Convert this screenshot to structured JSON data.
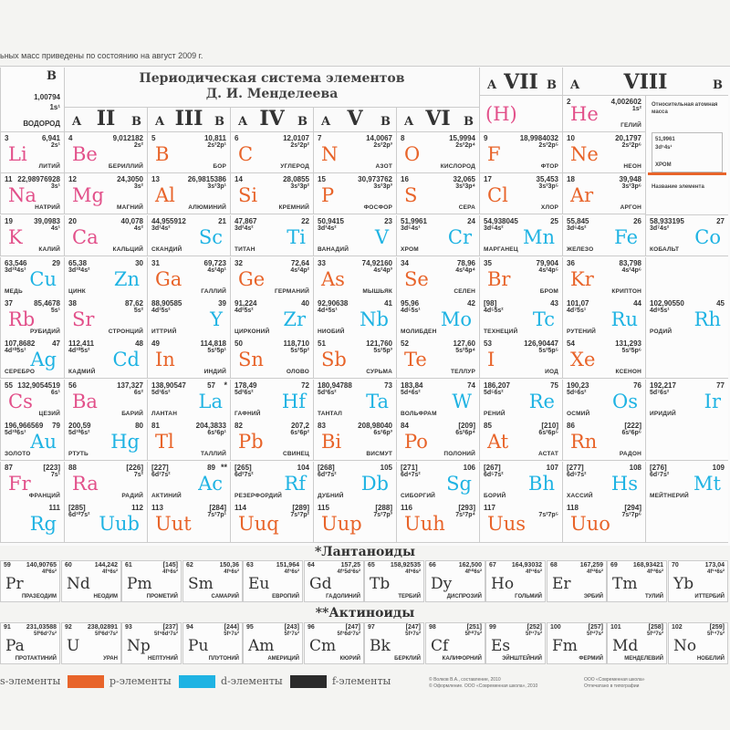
{
  "note": "ьных масс приведены по состоянию на август 2009 г.",
  "title": {
    "line1": "Периодическая система элементов",
    "line2": "Д. И. Менделеева"
  },
  "colors": {
    "s": "#e2508a",
    "p": "#e8642a",
    "d": "#1fb3e3",
    "f": "#2b2b2b"
  },
  "groups": [
    {
      "roman": "",
      "a": "",
      "b": "B"
    },
    {
      "roman": "II",
      "a": "A",
      "b": "B"
    },
    {
      "roman": "III",
      "a": "A",
      "b": "B"
    },
    {
      "roman": "IV",
      "a": "A",
      "b": "B"
    },
    {
      "roman": "V",
      "a": "A",
      "b": "B"
    },
    {
      "roman": "VI",
      "a": "A",
      "b": "B"
    },
    {
      "roman": "VII",
      "a": "A",
      "b": "B"
    },
    {
      "roman": "VIII",
      "a": "A",
      "b": "B"
    }
  ],
  "hydrogen_partial": {
    "mass": "1,00794",
    "cfg": "1s¹",
    "name": "ВОДОРОД"
  },
  "hydrogen_vii": "(H)",
  "helium": {
    "n": "2",
    "mass": "4,002602",
    "cfg": "1s²",
    "sym": "He",
    "name": "ГЕЛИЙ",
    "t": "s"
  },
  "legend_box": {
    "mass_label": "Относительная атомная масса",
    "mass": "51,9961",
    "cfg": "3d⁵4s¹",
    "name": "ХРОМ",
    "name_label": "Название элемента"
  },
  "rows": [
    [
      {
        "n": "3",
        "m": "6,941",
        "c": "2s¹",
        "s": "Li",
        "nm": "ЛИТИЙ",
        "t": "s",
        "side": "L"
      },
      {
        "n": "4",
        "m": "9,012182",
        "c": "2s²",
        "s": "Be",
        "nm": "БЕРИЛЛИЙ",
        "t": "s",
        "side": "L"
      },
      {
        "n": "5",
        "m": "10,811",
        "c": "2s²2p¹",
        "s": "B",
        "nm": "БОР",
        "t": "p",
        "side": "L"
      },
      {
        "n": "6",
        "m": "12,0107",
        "c": "2s²2p²",
        "s": "C",
        "nm": "УГЛЕРОД",
        "t": "p",
        "side": "L"
      },
      {
        "n": "7",
        "m": "14,0067",
        "c": "2s²2p³",
        "s": "N",
        "nm": "АЗОТ",
        "t": "p",
        "side": "L"
      },
      {
        "n": "8",
        "m": "15,9994",
        "c": "2s²2p⁴",
        "s": "O",
        "nm": "КИСЛОРОД",
        "t": "p",
        "side": "L"
      },
      {
        "n": "9",
        "m": "18,9984032",
        "c": "2s²2p⁵",
        "s": "F",
        "nm": "ФТОР",
        "t": "p",
        "side": "L"
      },
      {
        "n": "10",
        "m": "20,1797",
        "c": "2s²2p⁶",
        "s": "Ne",
        "nm": "НЕОН",
        "t": "p",
        "side": "L"
      },
      null
    ],
    [
      {
        "n": "11",
        "m": "22,98976928",
        "c": "3s¹",
        "s": "Na",
        "nm": "НАТРИЙ",
        "t": "s",
        "side": "L"
      },
      {
        "n": "12",
        "m": "24,3050",
        "c": "3s²",
        "s": "Mg",
        "nm": "МАГНИЙ",
        "t": "s",
        "side": "L"
      },
      {
        "n": "13",
        "m": "26,9815386",
        "c": "3s²3p¹",
        "s": "Al",
        "nm": "АЛЮМИНИЙ",
        "t": "p",
        "side": "L"
      },
      {
        "n": "14",
        "m": "28,0855",
        "c": "3s²3p²",
        "s": "Si",
        "nm": "КРЕМНИЙ",
        "t": "p",
        "side": "L"
      },
      {
        "n": "15",
        "m": "30,973762",
        "c": "3s²3p³",
        "s": "P",
        "nm": "ФОСФОР",
        "t": "p",
        "side": "L"
      },
      {
        "n": "16",
        "m": "32,065",
        "c": "3s²3p⁴",
        "s": "S",
        "nm": "СЕРА",
        "t": "p",
        "side": "L"
      },
      {
        "n": "17",
        "m": "35,453",
        "c": "3s²3p⁵",
        "s": "Cl",
        "nm": "ХЛОР",
        "t": "p",
        "side": "L"
      },
      {
        "n": "18",
        "m": "39,948",
        "c": "3s²3p⁶",
        "s": "Ar",
        "nm": "АРГОН",
        "t": "p",
        "side": "L"
      },
      null
    ],
    [
      {
        "n": "19",
        "m": "39,0983",
        "c": "4s¹",
        "s": "K",
        "nm": "КАЛИЙ",
        "t": "s",
        "side": "L"
      },
      {
        "n": "20",
        "m": "40,078",
        "c": "4s²",
        "s": "Ca",
        "nm": "КАЛЬЦИЙ",
        "t": "s",
        "side": "L"
      },
      {
        "n": "21",
        "m": "44,955912",
        "c": "3d¹4s²",
        "s": "Sc",
        "nm": "СКАНДИЙ",
        "t": "d",
        "side": "R"
      },
      {
        "n": "22",
        "m": "47,867",
        "c": "3d²4s²",
        "s": "Ti",
        "nm": "ТИТАН",
        "t": "d",
        "side": "R"
      },
      {
        "n": "23",
        "m": "50,9415",
        "c": "3d³4s²",
        "s": "V",
        "nm": "ВАНАДИЙ",
        "t": "d",
        "side": "R"
      },
      {
        "n": "24",
        "m": "51,9961",
        "c": "3d⁵4s¹",
        "s": "Cr",
        "nm": "ХРОМ",
        "t": "d",
        "side": "R"
      },
      {
        "n": "25",
        "m": "54,938045",
        "c": "3d⁵4s²",
        "s": "Mn",
        "nm": "МАРГАНЕЦ",
        "t": "d",
        "side": "R"
      },
      {
        "n": "26",
        "m": "55,845",
        "c": "3d⁶4s²",
        "s": "Fe",
        "nm": "ЖЕЛЕЗО",
        "t": "d",
        "side": "R"
      },
      {
        "n": "27",
        "m": "58,933195",
        "c": "3d⁷4s²",
        "s": "Co",
        "nm": "КОБАЛЬТ",
        "t": "d",
        "side": "R"
      }
    ],
    [
      {
        "n": "29",
        "m": "63,546",
        "c": "3d¹⁰4s¹",
        "s": "Cu",
        "nm": "МЕДЬ",
        "t": "d",
        "side": "R"
      },
      {
        "n": "30",
        "m": "65,38",
        "c": "3d¹⁰4s²",
        "s": "Zn",
        "nm": "ЦИНК",
        "t": "d",
        "side": "R"
      },
      {
        "n": "31",
        "m": "69,723",
        "c": "4s²4p¹",
        "s": "Ga",
        "nm": "ГАЛЛИЙ",
        "t": "p",
        "side": "L"
      },
      {
        "n": "32",
        "m": "72,64",
        "c": "4s²4p²",
        "s": "Ge",
        "nm": "ГЕРМАНИЙ",
        "t": "p",
        "side": "L"
      },
      {
        "n": "33",
        "m": "74,92160",
        "c": "4s²4p³",
        "s": "As",
        "nm": "МЫШЬЯК",
        "t": "p",
        "side": "L"
      },
      {
        "n": "34",
        "m": "78,96",
        "c": "4s²4p⁴",
        "s": "Se",
        "nm": "СЕЛЕН",
        "t": "p",
        "side": "L"
      },
      {
        "n": "35",
        "m": "79,904",
        "c": "4s²4p⁵",
        "s": "Br",
        "nm": "БРОМ",
        "t": "p",
        "side": "L"
      },
      {
        "n": "36",
        "m": "83,798",
        "c": "4s²4p⁶",
        "s": "Kr",
        "nm": "КРИПТОН",
        "t": "p",
        "side": "L"
      },
      null
    ],
    [
      {
        "n": "37",
        "m": "85,4678",
        "c": "5s¹",
        "s": "Rb",
        "nm": "РУБИДИЙ",
        "t": "s",
        "side": "L"
      },
      {
        "n": "38",
        "m": "87,62",
        "c": "5s²",
        "s": "Sr",
        "nm": "СТРОНЦИЙ",
        "t": "s",
        "side": "L"
      },
      {
        "n": "39",
        "m": "88,90585",
        "c": "4d¹5s²",
        "s": "Y",
        "nm": "ИТТРИЙ",
        "t": "d",
        "side": "R"
      },
      {
        "n": "40",
        "m": "91,224",
        "c": "4d²5s²",
        "s": "Zr",
        "nm": "ЦИРКОНИЙ",
        "t": "d",
        "side": "R"
      },
      {
        "n": "41",
        "m": "92,90638",
        "c": "4d⁴5s¹",
        "s": "Nb",
        "nm": "НИОБИЙ",
        "t": "d",
        "side": "R"
      },
      {
        "n": "42",
        "m": "95,96",
        "c": "4d⁵5s¹",
        "s": "Mo",
        "nm": "МОЛИБДЕН",
        "t": "d",
        "side": "R"
      },
      {
        "n": "43",
        "m": "[98]",
        "c": "4d⁵5s²",
        "s": "Tc",
        "nm": "ТЕХНЕЦИЙ",
        "t": "d",
        "side": "R"
      },
      {
        "n": "44",
        "m": "101,07",
        "c": "4d⁷5s¹",
        "s": "Ru",
        "nm": "РУТЕНИЙ",
        "t": "d",
        "side": "R"
      },
      {
        "n": "45",
        "m": "102,90550",
        "c": "4d⁸5s¹",
        "s": "Rh",
        "nm": "РОДИЙ",
        "t": "d",
        "side": "R"
      }
    ],
    [
      {
        "n": "47",
        "m": "107,8682",
        "c": "4d¹⁰5s¹",
        "s": "Ag",
        "nm": "СЕРЕБРО",
        "t": "d",
        "side": "R"
      },
      {
        "n": "48",
        "m": "112,411",
        "c": "4d¹⁰5s²",
        "s": "Cd",
        "nm": "КАДМИЙ",
        "t": "d",
        "side": "R"
      },
      {
        "n": "49",
        "m": "114,818",
        "c": "5s²5p¹",
        "s": "In",
        "nm": "ИНДИЙ",
        "t": "p",
        "side": "L"
      },
      {
        "n": "50",
        "m": "118,710",
        "c": "5s²5p²",
        "s": "Sn",
        "nm": "ОЛОВО",
        "t": "p",
        "side": "L"
      },
      {
        "n": "51",
        "m": "121,760",
        "c": "5s²5p³",
        "s": "Sb",
        "nm": "СУРЬМА",
        "t": "p",
        "side": "L"
      },
      {
        "n": "52",
        "m": "127,60",
        "c": "5s²5p⁴",
        "s": "Te",
        "nm": "ТЕЛЛУР",
        "t": "p",
        "side": "L"
      },
      {
        "n": "53",
        "m": "126,90447",
        "c": "5s²5p⁵",
        "s": "I",
        "nm": "ИОД",
        "t": "p",
        "side": "L"
      },
      {
        "n": "54",
        "m": "131,293",
        "c": "5s²5p⁶",
        "s": "Xe",
        "nm": "КСЕНОН",
        "t": "p",
        "side": "L"
      },
      null
    ],
    [
      {
        "n": "55",
        "m": "132,9054519",
        "c": "6s¹",
        "s": "Cs",
        "nm": "ЦЕЗИЙ",
        "t": "s",
        "side": "L"
      },
      {
        "n": "56",
        "m": "137,327",
        "c": "6s²",
        "s": "Ba",
        "nm": "БАРИЙ",
        "t": "s",
        "side": "L"
      },
      {
        "n": "57",
        "m": "138,90547",
        "c": "5d¹6s²",
        "s": "La",
        "nm": "ЛАНТАН",
        "t": "d",
        "side": "R",
        "x": "*"
      },
      {
        "n": "72",
        "m": "178,49",
        "c": "5d²6s²",
        "s": "Hf",
        "nm": "ГАФНИЙ",
        "t": "d",
        "side": "R"
      },
      {
        "n": "73",
        "m": "180,94788",
        "c": "5d³6s²",
        "s": "Ta",
        "nm": "ТАНТАЛ",
        "t": "d",
        "side": "R"
      },
      {
        "n": "74",
        "m": "183,84",
        "c": "5d⁴6s²",
        "s": "W",
        "nm": "ВОЛЬФРАМ",
        "t": "d",
        "side": "R"
      },
      {
        "n": "75",
        "m": "186,207",
        "c": "5d⁵6s²",
        "s": "Re",
        "nm": "РЕНИЙ",
        "t": "d",
        "side": "R"
      },
      {
        "n": "76",
        "m": "190,23",
        "c": "5d⁶6s²",
        "s": "Os",
        "nm": "ОСМИЙ",
        "t": "d",
        "side": "R"
      },
      {
        "n": "77",
        "m": "192,217",
        "c": "5d⁷6s²",
        "s": "Ir",
        "nm": "ИРИДИЙ",
        "t": "d",
        "side": "R"
      }
    ],
    [
      {
        "n": "79",
        "m": "196,966569",
        "c": "5d¹⁰6s¹",
        "s": "Au",
        "nm": "ЗОЛОТО",
        "t": "d",
        "side": "R"
      },
      {
        "n": "80",
        "m": "200,59",
        "c": "5d¹⁰6s²",
        "s": "Hg",
        "nm": "РТУТЬ",
        "t": "d",
        "side": "R"
      },
      {
        "n": "81",
        "m": "204,3833",
        "c": "6s²6p¹",
        "s": "Tl",
        "nm": "ТАЛЛИЙ",
        "t": "p",
        "side": "L"
      },
      {
        "n": "82",
        "m": "207,2",
        "c": "6s²6p²",
        "s": "Pb",
        "nm": "СВИНЕЦ",
        "t": "p",
        "side": "L"
      },
      {
        "n": "83",
        "m": "208,98040",
        "c": "6s²6p³",
        "s": "Bi",
        "nm": "ВИСМУТ",
        "t": "p",
        "side": "L"
      },
      {
        "n": "84",
        "m": "[209]",
        "c": "6s²6p⁴",
        "s": "Po",
        "nm": "ПОЛОНИЙ",
        "t": "p",
        "side": "L"
      },
      {
        "n": "85",
        "m": "[210]",
        "c": "6s²6p⁵",
        "s": "At",
        "nm": "АСТАТ",
        "t": "p",
        "side": "L"
      },
      {
        "n": "86",
        "m": "[222]",
        "c": "6s²6p⁶",
        "s": "Rn",
        "nm": "РАДОН",
        "t": "p",
        "side": "L"
      },
      null
    ],
    [
      {
        "n": "87",
        "m": "[223]",
        "c": "7s¹",
        "s": "Fr",
        "nm": "ФРАНЦИЙ",
        "t": "s",
        "side": "L"
      },
      {
        "n": "88",
        "m": "[226]",
        "c": "7s²",
        "s": "Ra",
        "nm": "РАДИЙ",
        "t": "s",
        "side": "L"
      },
      {
        "n": "89",
        "m": "[227]",
        "c": "6d¹7s²",
        "s": "Ac",
        "nm": "АКТИНИЙ",
        "t": "d",
        "side": "R",
        "x": "**"
      },
      {
        "n": "104",
        "m": "[265]",
        "c": "6d²7s²",
        "s": "Rf",
        "nm": "РЕЗЕРФОРДИЙ",
        "t": "d",
        "side": "R"
      },
      {
        "n": "105",
        "m": "[268]",
        "c": "6d³7s²",
        "s": "Db",
        "nm": "ДУБНИЙ",
        "t": "d",
        "side": "R"
      },
      {
        "n": "106",
        "m": "[271]",
        "c": "6d⁴7s²",
        "s": "Sg",
        "nm": "СИБОРГИЙ",
        "t": "d",
        "side": "R"
      },
      {
        "n": "107",
        "m": "[267]",
        "c": "6d⁵7s²",
        "s": "Bh",
        "nm": "БОРИЙ",
        "t": "d",
        "side": "R"
      },
      {
        "n": "108",
        "m": "[277]",
        "c": "6d⁶7s²",
        "s": "Hs",
        "nm": "ХАССИЙ",
        "t": "d",
        "side": "R"
      },
      {
        "n": "109",
        "m": "[276]",
        "c": "6d⁷7s²",
        "s": "Mt",
        "nm": "МЕЙТНЕРИЙ",
        "t": "d",
        "side": "R"
      }
    ],
    [
      {
        "n": "111",
        "m": "",
        "c": "",
        "s": "Rg",
        "nm": "",
        "t": "d",
        "side": "R"
      },
      {
        "n": "112",
        "m": "[285]",
        "c": "6d¹⁰7s²",
        "s": "Uub",
        "nm": "",
        "t": "d",
        "side": "R"
      },
      {
        "n": "113",
        "m": "[284]",
        "c": "7s²7p¹",
        "s": "Uut",
        "nm": "",
        "t": "p",
        "side": "L"
      },
      {
        "n": "114",
        "m": "[289]",
        "c": "7s²7p²",
        "s": "Uuq",
        "nm": "",
        "t": "p",
        "side": "L"
      },
      {
        "n": "115",
        "m": "[288]",
        "c": "7s²7p³",
        "s": "Uup",
        "nm": "",
        "t": "p",
        "side": "L"
      },
      {
        "n": "116",
        "m": "[293]",
        "c": "7s²7p⁴",
        "s": "Uuh",
        "nm": "",
        "t": "p",
        "side": "L"
      },
      {
        "n": "117",
        "m": "",
        "c": "7s²7p⁵",
        "s": "Uus",
        "nm": "",
        "t": "p",
        "side": "L"
      },
      {
        "n": "118",
        "m": "[294]",
        "c": "7s²7p⁶",
        "s": "Uuo",
        "nm": "",
        "t": "p",
        "side": "L"
      },
      null
    ]
  ],
  "lanthanides": {
    "title": "*Лантаноиды",
    "cells": [
      {
        "n": "59",
        "m": "140,90765",
        "c": "4f³6s²",
        "s": "Pr",
        "nm": "ПРАЗЕОДИМ"
      },
      {
        "n": "60",
        "m": "144,242",
        "c": "4f⁴6s²",
        "s": "Nd",
        "nm": "НЕОДИМ"
      },
      {
        "n": "61",
        "m": "[145]",
        "c": "4f⁵6s²",
        "s": "Pm",
        "nm": "ПРОМЕТИЙ"
      },
      {
        "n": "62",
        "m": "150,36",
        "c": "4f⁶6s²",
        "s": "Sm",
        "nm": "САМАРИЙ"
      },
      {
        "n": "63",
        "m": "151,964",
        "c": "4f⁷6s²",
        "s": "Eu",
        "nm": "ЕВРОПИЙ"
      },
      {
        "n": "64",
        "m": "157,25",
        "c": "4f⁷5d¹6s²",
        "s": "Gd",
        "nm": "ГАДОЛИНИЙ"
      },
      {
        "n": "65",
        "m": "158,92535",
        "c": "4f⁹6s²",
        "s": "Tb",
        "nm": "ТЕРБИЙ"
      },
      {
        "n": "66",
        "m": "162,500",
        "c": "4f¹⁰6s²",
        "s": "Dy",
        "nm": "ДИСПРОЗИЙ"
      },
      {
        "n": "67",
        "m": "164,93032",
        "c": "4f¹¹6s²",
        "s": "Ho",
        "nm": "ГОЛЬМИЙ"
      },
      {
        "n": "68",
        "m": "167,259",
        "c": "4f¹²6s²",
        "s": "Er",
        "nm": "ЭРБИЙ"
      },
      {
        "n": "69",
        "m": "168,93421",
        "c": "4f¹³6s²",
        "s": "Tm",
        "nm": "ТУЛИЙ"
      },
      {
        "n": "70",
        "m": "173,04",
        "c": "4f¹⁴6s²",
        "s": "Yb",
        "nm": "ИТТЕРБИЙ"
      }
    ]
  },
  "actinides": {
    "title": "**Актиноиды",
    "cells": [
      {
        "n": "91",
        "m": "231,03588",
        "c": "5f²6d¹7s²",
        "s": "Pa",
        "nm": "ПРОТАКТИНИЙ"
      },
      {
        "n": "92",
        "m": "238,02891",
        "c": "5f³6d¹7s²",
        "s": "U",
        "nm": "УРАН"
      },
      {
        "n": "93",
        "m": "[237]",
        "c": "5f⁴6d¹7s²",
        "s": "Np",
        "nm": "НЕПТУНИЙ"
      },
      {
        "n": "94",
        "m": "[244]",
        "c": "5f⁶7s²",
        "s": "Pu",
        "nm": "ПЛУТОНИЙ"
      },
      {
        "n": "95",
        "m": "[243]",
        "c": "5f⁷7s²",
        "s": "Am",
        "nm": "АМЕРИЦИЙ"
      },
      {
        "n": "96",
        "m": "[247]",
        "c": "5f⁷6d¹7s²",
        "s": "Cm",
        "nm": "КЮРИЙ"
      },
      {
        "n": "97",
        "m": "[247]",
        "c": "5f⁹7s²",
        "s": "Bk",
        "nm": "БЕРКЛИЙ"
      },
      {
        "n": "98",
        "m": "[251]",
        "c": "5f¹⁰7s²",
        "s": "Cf",
        "nm": "КАЛИФОРНИЙ"
      },
      {
        "n": "99",
        "m": "[252]",
        "c": "5f¹¹7s²",
        "s": "Es",
        "nm": "ЭЙНШТЕЙНИЙ"
      },
      {
        "n": "100",
        "m": "[257]",
        "c": "5f¹²7s²",
        "s": "Fm",
        "nm": "ФЕРМИЙ"
      },
      {
        "n": "101",
        "m": "[258]",
        "c": "5f¹³7s²",
        "s": "Md",
        "nm": "МЕНДЕЛЕВИЙ"
      },
      {
        "n": "102",
        "m": "[259]",
        "c": "5f¹⁴7s²",
        "s": "No",
        "nm": "НОБЕЛИЙ"
      }
    ]
  },
  "legend": {
    "s": "s-элементы",
    "p": "p-элементы",
    "d": "d-элементы",
    "f": "f-элементы"
  },
  "imprint": {
    "left1": "© Волков В.А., составление, 2010",
    "left2": "© Оформление. ООО «Современная школа», 2010",
    "right1": "ООО «Современная школа»",
    "right2": "Отпечатано в типографии"
  }
}
